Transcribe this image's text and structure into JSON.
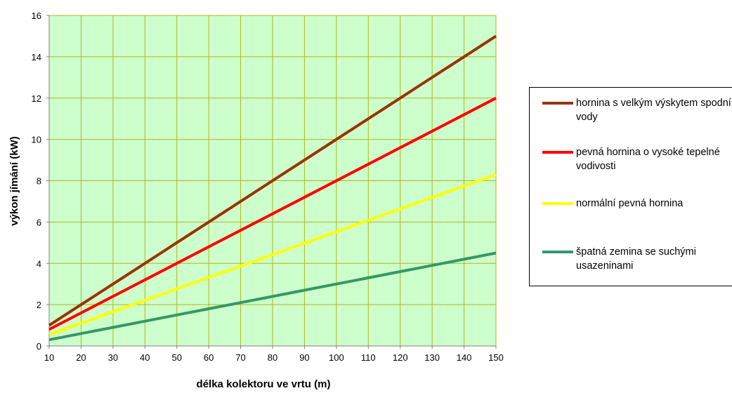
{
  "chart_data": {
    "type": "line",
    "title": "",
    "xlabel": "délka kolektoru ve vrtu (m)",
    "ylabel": "výkon jímání (kW)",
    "xlim": [
      10,
      150
    ],
    "ylim": [
      0,
      16
    ],
    "xticks": [
      "10",
      "20",
      "30",
      "40",
      "50",
      "60",
      "70",
      "80",
      "90",
      "100",
      "110",
      "120",
      "130",
      "140",
      "150"
    ],
    "yticks": [
      "0",
      "2",
      "4",
      "6",
      "8",
      "10",
      "12",
      "14",
      "16"
    ],
    "grid": true,
    "plot_background": "#ccffcc",
    "grid_color": "#b5b51a",
    "legend_position": "right",
    "series": [
      {
        "name": "hornina s velkým výskytem spodní vody",
        "color": "#993300",
        "x": [
          10,
          20,
          30,
          40,
          45,
          50,
          60,
          65,
          70,
          80,
          90,
          100,
          110,
          120,
          125,
          130,
          140,
          150
        ],
        "y": [
          1,
          2,
          3,
          4,
          4.5,
          5,
          6,
          6.5,
          7,
          8,
          9,
          10,
          11,
          12,
          12.5,
          13,
          14,
          15
        ]
      },
      {
        "name": "pevná hornina o vysoké tepelné vodivosti",
        "color": "#ff0000",
        "x": [
          10,
          150
        ],
        "y": [
          0.8,
          12
        ]
      },
      {
        "name": "normální pevná hornina",
        "color": "#ffff00",
        "x": [
          10,
          150
        ],
        "y": [
          0.55,
          8.3
        ]
      },
      {
        "name": "špatná zemina se suchými usazeninami",
        "color": "#339966",
        "x": [
          10,
          20,
          30,
          40,
          50,
          60,
          70,
          80,
          90,
          100,
          110,
          120,
          130,
          140,
          150
        ],
        "y": [
          0.3,
          0.6,
          0.9,
          1.2,
          1.5,
          1.8,
          2.1,
          2.4,
          2.7,
          3.0,
          3.3,
          3.6,
          3.9,
          4.2,
          4.5
        ]
      }
    ]
  }
}
